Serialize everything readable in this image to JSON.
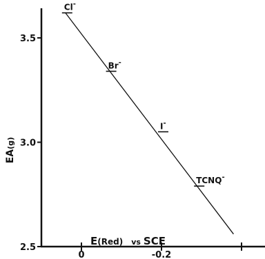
{
  "chart_data": {
    "type": "line",
    "title": "",
    "xlabel": "E(Red) vs SCE",
    "xlabel_parts": {
      "main": "E",
      "paren": "(Red)",
      "vs": "vs",
      "ref": "SCE"
    },
    "ylabel": "EA(g)",
    "ylabel_parts": {
      "main": "EA",
      "sub": "(g)"
    },
    "xlim": [
      0.1,
      -0.45
    ],
    "ylim": [
      2.5,
      3.7
    ],
    "x_ticks": [
      {
        "value": 0,
        "label": "0"
      },
      {
        "value": -0.2,
        "label": "-0.2"
      },
      {
        "value": -0.4,
        "label": ""
      }
    ],
    "y_ticks": [
      {
        "value": 3.5,
        "label": "3.5"
      },
      {
        "value": 3.0,
        "label": "3.0"
      },
      {
        "value": 2.5,
        "label": "2.5"
      }
    ],
    "fit_line": {
      "x": [
        0.04,
        -0.38
      ],
      "y": [
        3.62,
        2.56
      ]
    },
    "points": [
      {
        "label": "Cl",
        "sup": "-",
        "x": 0.04,
        "y": 3.62
      },
      {
        "label": "Br",
        "sup": "-",
        "x": -0.07,
        "y": 3.34
      },
      {
        "label": "I",
        "sup": "-",
        "x": -0.2,
        "y": 3.05
      },
      {
        "label": "TCNQ",
        "sup": "-",
        "x": -0.29,
        "y": 2.79
      }
    ],
    "grid": false,
    "legend": "none",
    "line_color": "#111111"
  }
}
